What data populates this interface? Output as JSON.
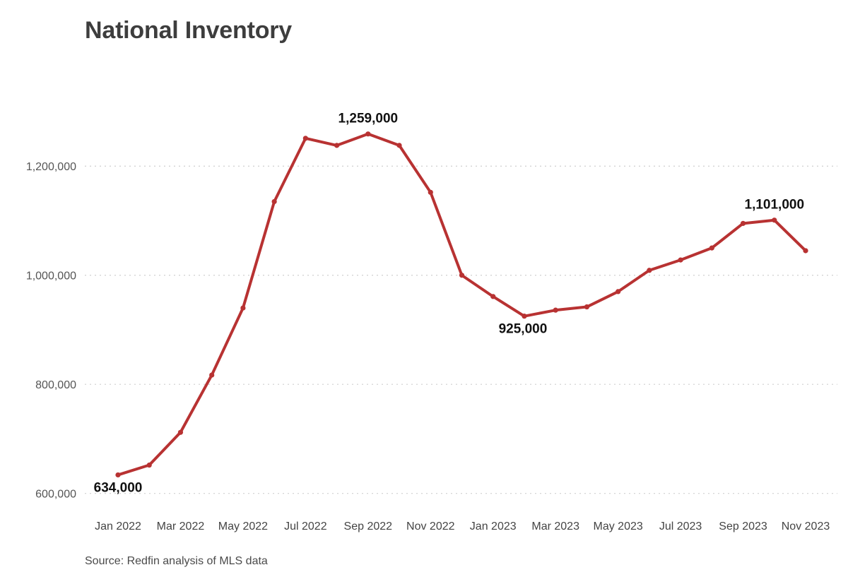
{
  "chart_data": {
    "type": "line",
    "title": "National Inventory",
    "source": "Source: Redfin analysis of MLS data",
    "xlabel": "",
    "ylabel": "",
    "ylim": [
      575000,
      1300000
    ],
    "grid": true,
    "colors": {
      "series": "#b83232",
      "grid": "#cfcfcf"
    },
    "x": [
      "2022-01",
      "2022-02",
      "2022-03",
      "2022-04",
      "2022-05",
      "2022-06",
      "2022-07",
      "2022-08",
      "2022-09",
      "2022-10",
      "2022-11",
      "2022-12",
      "2023-01",
      "2023-02",
      "2023-03",
      "2023-04",
      "2023-05",
      "2023-06",
      "2023-07",
      "2023-08",
      "2023-09",
      "2023-10",
      "2023-11"
    ],
    "x_tick_labels": [
      "Jan 2022",
      "Mar 2022",
      "May 2022",
      "Jul 2022",
      "Sep 2022",
      "Nov 2022",
      "Jan 2023",
      "Mar 2023",
      "May 2023",
      "Jul 2023",
      "Sep 2023",
      "Nov 2023"
    ],
    "y_tick_values": [
      600000,
      800000,
      1000000,
      1200000
    ],
    "y_tick_labels": [
      "600,000",
      "800,000",
      "1,000,000",
      "1,200,000"
    ],
    "series": [
      {
        "values": [
          634000,
          652000,
          712000,
          817000,
          940000,
          1135000,
          1251000,
          1238000,
          1259000,
          1238000,
          1152000,
          1000000,
          961000,
          925000,
          936000,
          942000,
          970000,
          1009000,
          1028000,
          1050000,
          1095000,
          1101000,
          1045000
        ]
      }
    ],
    "annotations": [
      {
        "label": "634,000",
        "index": 0
      },
      {
        "label": "1,259,000",
        "index": 8
      },
      {
        "label": "925,000",
        "index": 13
      },
      {
        "label": "1,101,000",
        "index": 21
      }
    ]
  }
}
